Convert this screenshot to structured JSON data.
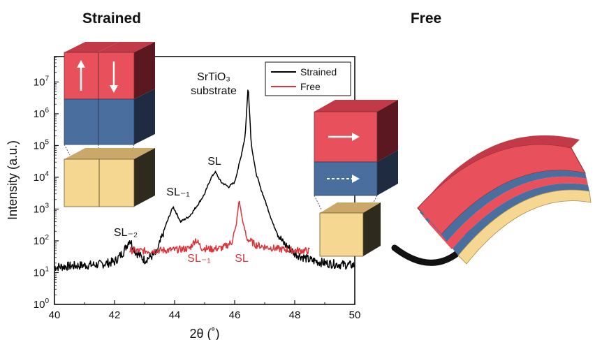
{
  "headings": {
    "left": "Strained",
    "right": "Free"
  },
  "colors": {
    "strained": "#000000",
    "free": "#d9353b",
    "ferro_red": "#e8505b",
    "dielectric_blue": "#4a6e9e",
    "substrate": "#f5d792",
    "arrow": "#111111"
  },
  "icons": {
    "strained_cube": "stacked-cubes-with-out-of-plane-polarization-arrows",
    "free_cube": "stacked-cube-with-in-plane-polarization-arrows",
    "membrane": "curved-freestanding-superlattice-membrane",
    "release_arrow": "curved-arrow-icon"
  },
  "chart_data": {
    "type": "line",
    "xlabel": "2θ (˚)",
    "ylabel": "Intensity (a.u.)",
    "xlim": [
      40,
      50
    ],
    "ylim_log10": [
      0,
      7.8
    ],
    "y_scale": "log",
    "xticks": [
      40,
      42,
      44,
      46,
      48,
      50
    ],
    "yticks": [
      {
        "base": "10",
        "exp": "0"
      },
      {
        "base": "10",
        "exp": "1"
      },
      {
        "base": "10",
        "exp": "2"
      },
      {
        "base": "10",
        "exp": "3"
      },
      {
        "base": "10",
        "exp": "4"
      },
      {
        "base": "10",
        "exp": "5"
      },
      {
        "base": "10",
        "exp": "6"
      },
      {
        "base": "10",
        "exp": "7"
      }
    ],
    "legend": {
      "position": "top-right",
      "entries": [
        "Strained",
        "Free"
      ]
    },
    "series": [
      {
        "name": "Strained",
        "x": [
          40.0,
          40.5,
          41.0,
          41.5,
          42.0,
          42.3,
          42.5,
          42.7,
          43.0,
          43.4,
          43.7,
          43.95,
          44.2,
          44.5,
          44.8,
          45.0,
          45.2,
          45.35,
          45.55,
          45.8,
          46.0,
          46.2,
          46.35,
          46.45,
          46.55,
          46.7,
          46.85,
          47.0,
          47.3,
          47.6,
          48.0,
          48.5,
          49.0,
          49.5,
          50.0
        ],
        "y": [
          15,
          16,
          17,
          18,
          22,
          45,
          110,
          45,
          25,
          40,
          300,
          1200,
          400,
          600,
          1500,
          3000,
          9000,
          15000,
          7000,
          5000,
          7000,
          40000,
          200000,
          8000000,
          120000,
          15000,
          5000,
          2000,
          300,
          90,
          40,
          25,
          20,
          18,
          17
        ]
      },
      {
        "name": "Free",
        "x": [
          42.5,
          43.0,
          43.5,
          44.0,
          44.5,
          44.7,
          44.9,
          45.2,
          45.6,
          45.9,
          46.05,
          46.15,
          46.25,
          46.4,
          46.7,
          47.0,
          47.5,
          48.0,
          48.5
        ],
        "y": [
          50,
          48,
          50,
          52,
          58,
          110,
          60,
          55,
          60,
          90,
          300,
          2000,
          500,
          120,
          75,
          65,
          55,
          50,
          48
        ]
      }
    ],
    "annotations": {
      "substrate_line1": "SrTiO₃",
      "substrate_line2": "substrate",
      "sl_strained": "SL",
      "sl_m1_strained": "SL₋₁",
      "sl_m2_strained": "SL₋₂",
      "sl_m1_free": "SL₋₁",
      "sl_free": "SL"
    }
  }
}
